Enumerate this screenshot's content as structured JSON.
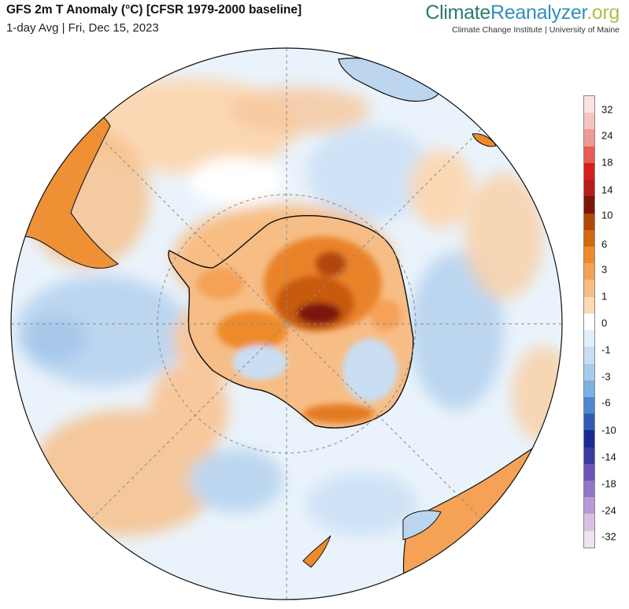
{
  "header": {
    "title": "GFS 2m T Anomaly (°C) [CFSR 1979-2000 baseline]",
    "subtitle": "1-day Avg | Fri, Dec 15, 2023"
  },
  "brand": {
    "name_part1": "Climate",
    "name_part2": "Reanalyzer",
    "name_part3": ".org",
    "affiliation": "Climate Change Institute | University of Maine"
  },
  "map": {
    "projection": "south-polar orthographic",
    "colors": {
      "ocean_base": "#eaf3fb",
      "coastline": "#111111",
      "graticule": "#8a8a8a"
    }
  },
  "legend": {
    "colors": [
      "#fbe3e1",
      "#f6c4bf",
      "#ef9a93",
      "#e85c56",
      "#d81d1d",
      "#b71c1c",
      "#7c1508",
      "#b1470b",
      "#d6670d",
      "#ef8a2a",
      "#f5a257",
      "#f8bd83",
      "#fbd9b4",
      "#ffffff",
      "#e3eef9",
      "#c9def3",
      "#a9cbeb",
      "#7eb0e0",
      "#4d87cf",
      "#2d5bb5",
      "#1a2a94",
      "#3a3aa3",
      "#6c55b8",
      "#9276c7",
      "#b89ad6",
      "#d8c0e5",
      "#f1e2f1"
    ],
    "tick_labels": [
      "32",
      "24",
      "18",
      "14",
      "10",
      "6",
      "3",
      "1",
      "0",
      "-1",
      "-3",
      "-6",
      "-10",
      "-14",
      "-18",
      "-24",
      "-32"
    ]
  }
}
